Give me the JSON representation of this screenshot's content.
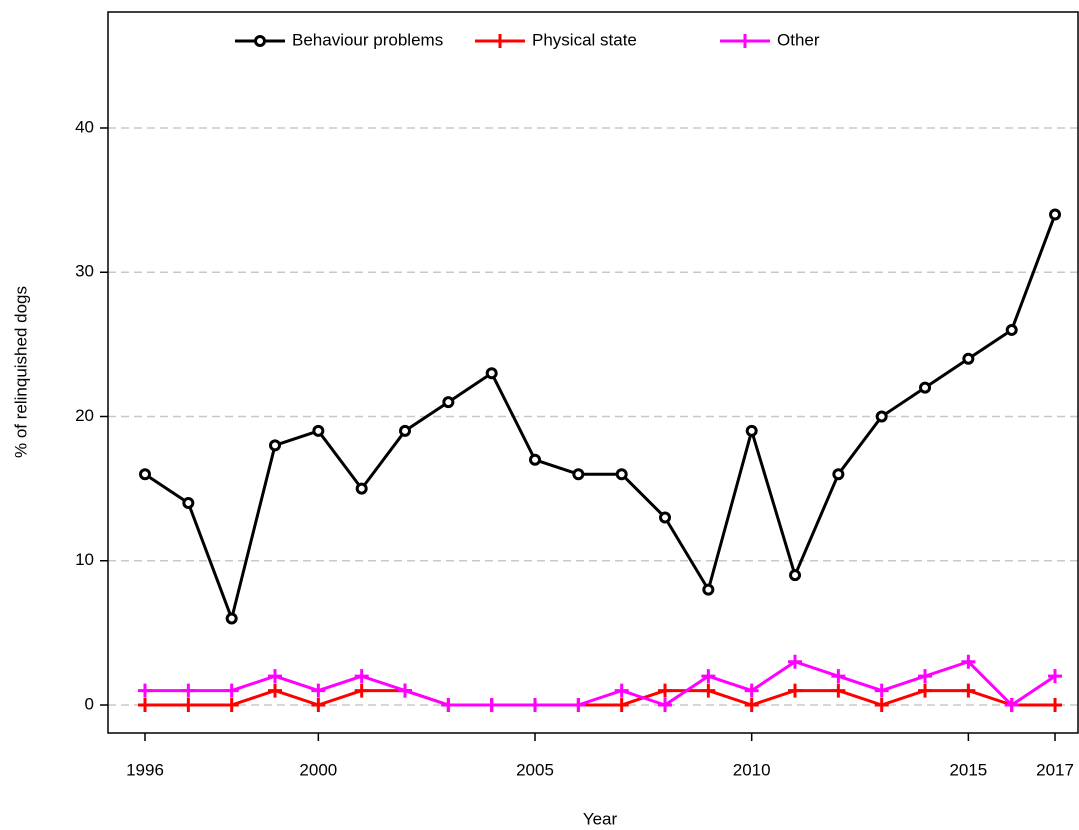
{
  "chart_data": {
    "type": "line",
    "x_label": "Year",
    "y_label": "% of relinquished dogs",
    "x": [
      1996,
      1997,
      1998,
      1999,
      2000,
      2001,
      2002,
      2003,
      2004,
      2005,
      2006,
      2007,
      2008,
      2009,
      2010,
      2011,
      2012,
      2013,
      2014,
      2015,
      2016,
      2017
    ],
    "series": [
      {
        "name": "Behaviour problems",
        "color": "#000000",
        "marker": "circle",
        "values": [
          16,
          14,
          6,
          18,
          19,
          15,
          19,
          21,
          23,
          17,
          16,
          16,
          13,
          8,
          19,
          9,
          16,
          20,
          22,
          24,
          26,
          34
        ]
      },
      {
        "name": "Physical state",
        "color": "#ff0000",
        "marker": "plus",
        "values": [
          0,
          0,
          0,
          1,
          0,
          1,
          1,
          0,
          0,
          0,
          0,
          0,
          1,
          1,
          0,
          1,
          1,
          0,
          1,
          1,
          0,
          0
        ]
      },
      {
        "name": "Other",
        "color": "#ff00ff",
        "marker": "plus",
        "values": [
          1,
          1,
          1,
          2,
          1,
          2,
          1,
          0,
          0,
          0,
          0,
          1,
          0,
          2,
          1,
          3,
          2,
          1,
          2,
          3,
          0,
          2
        ]
      }
    ],
    "xlim": [
      1995.146,
      2017.53
    ],
    "ylim": [
      -1.94,
      48.04
    ],
    "xticks": [
      1996,
      2000,
      2005,
      2010,
      2015,
      2017
    ],
    "yticks": [
      0,
      10,
      20,
      30,
      40
    ],
    "grid": true
  }
}
